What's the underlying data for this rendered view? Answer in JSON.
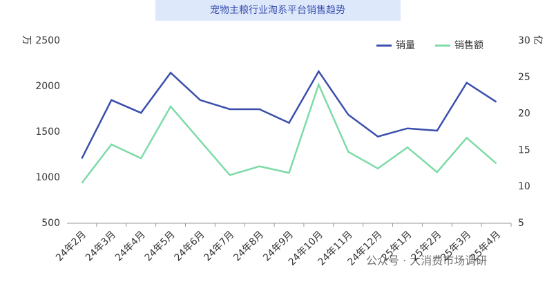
{
  "chart_data": {
    "type": "line",
    "title": "宠物主粮行业淘系平台销售趋势",
    "y_unit": "万",
    "y2_unit": "亿",
    "categories": [
      "24年2月",
      "24年3月",
      "24年4月",
      "24年5月",
      "24年6月",
      "24年7月",
      "24年8月",
      "24年9月",
      "24年10月",
      "24年11月",
      "24年12月",
      "25年1月",
      "25年2月",
      "25年3月",
      "25年4月"
    ],
    "series": [
      {
        "name": "销量",
        "color": "#3a4fad",
        "values": [
          1210,
          1850,
          1710,
          2150,
          1850,
          1750,
          1750,
          1600,
          2165,
          1690,
          1450,
          1540,
          1515,
          2040,
          1830
        ]
      },
      {
        "name": "销售额",
        "color": "#7ddba7",
        "axis": "y2",
        "values": [
          10.5,
          15.8,
          13.9,
          21.0,
          16.3,
          11.6,
          12.8,
          11.9,
          24.0,
          14.8,
          12.5,
          15.4,
          12.0,
          16.7,
          13.2
        ]
      }
    ],
    "ylim": [
      500,
      2500
    ],
    "yticks": [
      500,
      1000,
      1500,
      2000,
      2500
    ],
    "y2lim": [
      5,
      30
    ],
    "y2ticks": [
      5,
      10,
      15,
      20,
      25,
      30
    ],
    "legend": "top-right",
    "grid": false,
    "watermark": "公众号 · 大消费市场调研"
  }
}
